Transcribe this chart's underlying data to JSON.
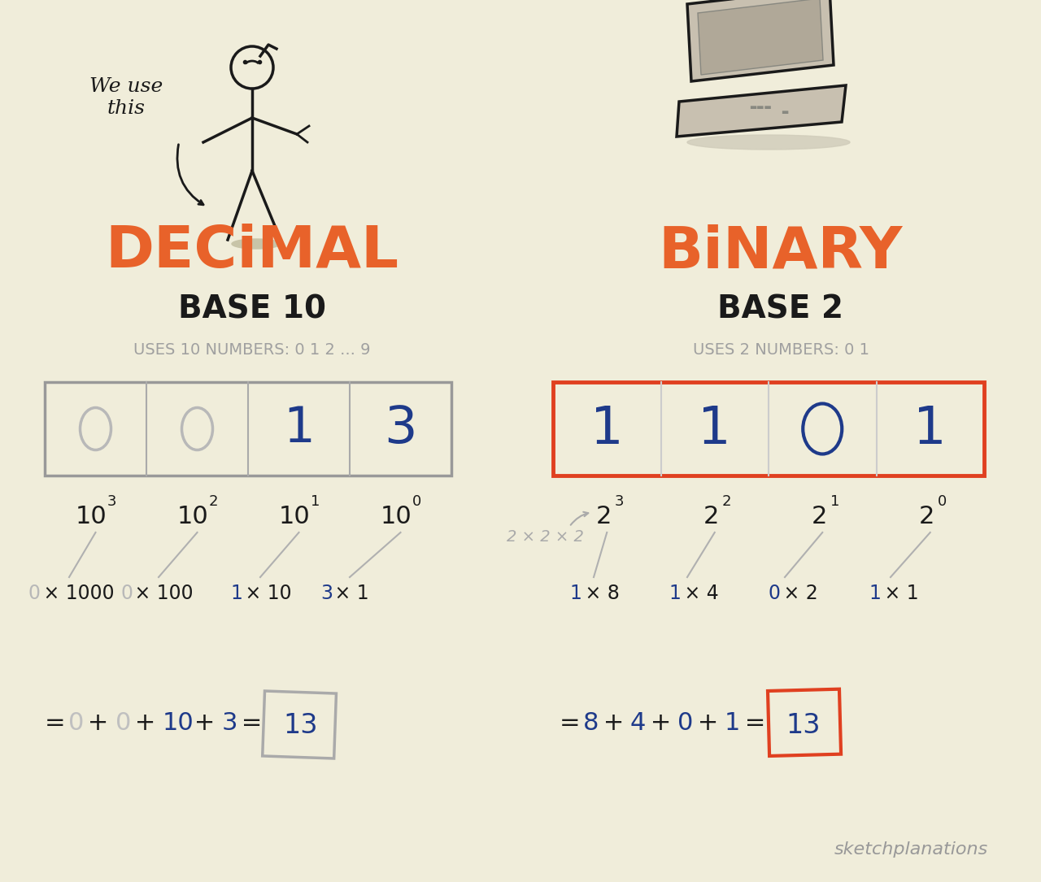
{
  "bg_color": "#f0edda",
  "orange_color": "#e8622a",
  "blue_color": "#1e3a8a",
  "dark_color": "#1a1a1a",
  "gray_color": "#999999",
  "light_gray": "#b0b0b0",
  "silver_gray": "#a0a0a0",
  "red_box_color": "#e04020",
  "decimal_title": "DECiMAL",
  "decimal_sub": "BASE 10",
  "decimal_desc": "USES 10 NUMBERS: 0 1 2 ... 9",
  "binary_title": "BiNARY",
  "binary_sub": "BASE 2",
  "binary_desc": "USES 2 NUMBERS: 0 1",
  "we_use_this": "We use\nthis",
  "decimal_digits": [
    "0",
    "0",
    "1",
    "3"
  ],
  "binary_digits": [
    "1",
    "1",
    "0",
    "1"
  ],
  "sketchplanations": "sketchplanations",
  "two_times": "2 × 2 × 2"
}
